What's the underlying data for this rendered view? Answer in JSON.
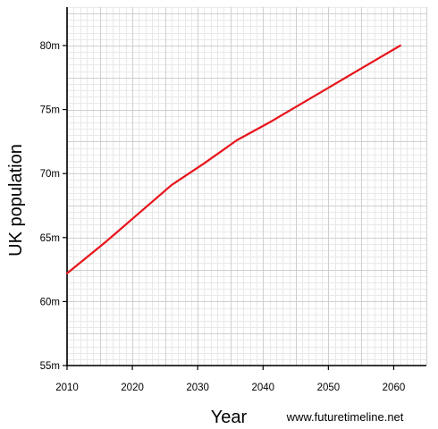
{
  "chart_data": {
    "type": "line",
    "xlabel": "Year",
    "ylabel": "UK population",
    "xlim": [
      2010,
      2065
    ],
    "ylim": [
      55,
      83
    ],
    "x_ticks": [
      2010,
      2020,
      2030,
      2040,
      2050,
      2060
    ],
    "x_tick_labels": [
      "2010",
      "2020",
      "2030",
      "2040",
      "2050",
      "2060"
    ],
    "y_ticks": [
      55,
      60,
      65,
      70,
      75,
      80
    ],
    "y_tick_labels": [
      "55m",
      "60m",
      "65m",
      "70m",
      "75m",
      "80m"
    ],
    "grid": true,
    "series": [
      {
        "color": "#e8141b",
        "x": [
          2010,
          2016,
          2021,
          2026,
          2031,
          2036,
          2041,
          2046,
          2051,
          2056,
          2061
        ],
        "y": [
          62.2,
          64.7,
          66.9,
          69.1,
          70.8,
          72.6,
          74.0,
          75.5,
          77.0,
          78.5,
          80.0
        ]
      }
    ]
  },
  "credit": "www.futuretimeline.net",
  "colors": {
    "line": "#e8141b",
    "grid_major": "#cfcfcf",
    "grid_minor": "#e9e9e9",
    "axis": "#000000"
  }
}
